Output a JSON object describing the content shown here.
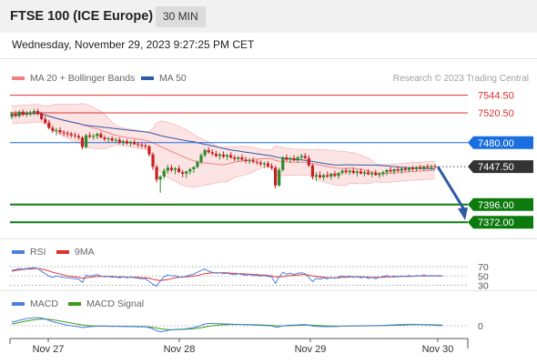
{
  "header": {
    "title": "FTSE 100 (ICE Europe)",
    "interval": "30 MIN",
    "datetime": "Wednesday, November 29, 2023 9:27:25 PM CET"
  },
  "legend": {
    "ma20": "MA 20 + Bollinger Bands",
    "ma50": "MA 50",
    "rsi": "RSI",
    "rsi_ma": "9MA",
    "macd": "MACD",
    "macd_signal": "MACD Signal"
  },
  "watermark": "Research © 2023 Trading Central",
  "colors": {
    "candle_up": "#2d8a2d",
    "candle_down": "#c82020",
    "ma20": "#f08080",
    "bollinger_fill": "#fde4e4",
    "ma50": "#2e5aa6",
    "resistance": "#e03030",
    "pivot": "#1a6fe0",
    "support": "#0d7a0d",
    "last_price": "#333333",
    "arrow": "#2e5aa6",
    "rsi": "#4a7fe0",
    "rsi_ma": "#e03030",
    "macd": "#4a7fe0",
    "macd_signal": "#3a9a1a"
  },
  "chart_data": [
    {
      "type": "candlestick",
      "panel": "price",
      "title": "",
      "x_tick_labels": [
        "Nov 27",
        "Nov 28",
        "Nov 29",
        "Nov 30"
      ],
      "ylim": [
        7355,
        7565
      ],
      "levels": [
        {
          "value": 7544.5,
          "label": "7544.50",
          "kind": "resistance"
        },
        {
          "value": 7520.5,
          "label": "7520.50",
          "kind": "resistance"
        },
        {
          "value": 7480.0,
          "label": "7480.00",
          "kind": "pivot"
        },
        {
          "value": 7447.5,
          "label": "7447.50",
          "kind": "last"
        },
        {
          "value": 7396.0,
          "label": "7396.00",
          "kind": "support"
        },
        {
          "value": 7372.0,
          "label": "7372.00",
          "kind": "support"
        }
      ],
      "forecast_arrow": {
        "from": 7447.5,
        "to": 7376
      },
      "candles": [
        [
          7515,
          7522,
          7512,
          7519
        ],
        [
          7519,
          7523,
          7514,
          7516
        ],
        [
          7516,
          7524,
          7514,
          7522
        ],
        [
          7522,
          7525,
          7516,
          7518
        ],
        [
          7518,
          7523,
          7515,
          7520
        ],
        [
          7520,
          7524,
          7516,
          7521
        ],
        [
          7521,
          7526,
          7517,
          7523
        ],
        [
          7523,
          7526,
          7517,
          7519
        ],
        [
          7519,
          7522,
          7510,
          7512
        ],
        [
          7512,
          7516,
          7505,
          7507
        ],
        [
          7507,
          7511,
          7498,
          7500
        ],
        [
          7500,
          7503,
          7493,
          7496
        ],
        [
          7496,
          7500,
          7490,
          7497
        ],
        [
          7497,
          7501,
          7491,
          7494
        ],
        [
          7494,
          7497,
          7489,
          7493
        ],
        [
          7493,
          7496,
          7488,
          7492
        ],
        [
          7492,
          7495,
          7487,
          7490
        ],
        [
          7490,
          7494,
          7486,
          7489
        ],
        [
          7489,
          7492,
          7484,
          7487
        ],
        [
          7487,
          7489,
          7471,
          7474
        ],
        [
          7474,
          7492,
          7472,
          7490
        ],
        [
          7490,
          7494,
          7486,
          7488
        ],
        [
          7488,
          7492,
          7484,
          7489
        ],
        [
          7489,
          7494,
          7485,
          7492
        ],
        [
          7492,
          7495,
          7486,
          7487
        ],
        [
          7487,
          7490,
          7482,
          7485
        ],
        [
          7485,
          7488,
          7480,
          7486
        ],
        [
          7486,
          7489,
          7481,
          7483
        ],
        [
          7483,
          7487,
          7479,
          7484
        ],
        [
          7484,
          7487,
          7478,
          7480
        ],
        [
          7480,
          7484,
          7476,
          7482
        ],
        [
          7482,
          7485,
          7477,
          7479
        ],
        [
          7479,
          7483,
          7475,
          7481
        ],
        [
          7481,
          7484,
          7477,
          7478
        ],
        [
          7478,
          7481,
          7474,
          7477
        ],
        [
          7477,
          7480,
          7473,
          7476
        ],
        [
          7476,
          7479,
          7472,
          7475
        ],
        [
          7475,
          7477,
          7461,
          7464
        ],
        [
          7464,
          7467,
          7443,
          7447
        ],
        [
          7447,
          7450,
          7426,
          7430
        ],
        [
          7430,
          7436,
          7412,
          7434
        ],
        [
          7434,
          7445,
          7431,
          7442
        ],
        [
          7442,
          7450,
          7438,
          7446
        ],
        [
          7446,
          7450,
          7440,
          7443
        ],
        [
          7443,
          7447,
          7437,
          7445
        ],
        [
          7445,
          7449,
          7439,
          7440
        ],
        [
          7440,
          7443,
          7433,
          7438
        ],
        [
          7438,
          7442,
          7432,
          7441
        ],
        [
          7441,
          7446,
          7437,
          7444
        ],
        [
          7444,
          7448,
          7439,
          7447
        ],
        [
          7447,
          7456,
          7445,
          7454
        ],
        [
          7454,
          7466,
          7451,
          7463
        ],
        [
          7463,
          7472,
          7460,
          7470
        ],
        [
          7470,
          7474,
          7465,
          7467
        ],
        [
          7467,
          7471,
          7462,
          7465
        ],
        [
          7465,
          7469,
          7460,
          7462
        ],
        [
          7462,
          7466,
          7457,
          7464
        ],
        [
          7464,
          7468,
          7459,
          7461
        ],
        [
          7461,
          7465,
          7456,
          7463
        ],
        [
          7463,
          7467,
          7458,
          7460
        ],
        [
          7460,
          7463,
          7455,
          7458
        ],
        [
          7458,
          7462,
          7454,
          7460
        ],
        [
          7460,
          7464,
          7455,
          7457
        ],
        [
          7457,
          7461,
          7452,
          7455
        ],
        [
          7455,
          7459,
          7451,
          7456
        ],
        [
          7456,
          7460,
          7452,
          7454
        ],
        [
          7454,
          7457,
          7450,
          7453
        ],
        [
          7453,
          7456,
          7448,
          7451
        ],
        [
          7451,
          7454,
          7446,
          7452
        ],
        [
          7452,
          7455,
          7446,
          7448
        ],
        [
          7448,
          7452,
          7443,
          7446
        ],
        [
          7446,
          7449,
          7418,
          7422
        ],
        [
          7422,
          7446,
          7420,
          7443
        ],
        [
          7443,
          7462,
          7441,
          7460
        ],
        [
          7460,
          7464,
          7455,
          7457
        ],
        [
          7457,
          7461,
          7452,
          7459
        ],
        [
          7459,
          7463,
          7455,
          7456
        ],
        [
          7456,
          7462,
          7453,
          7460
        ],
        [
          7460,
          7465,
          7457,
          7462
        ],
        [
          7462,
          7466,
          7458,
          7459
        ],
        [
          7459,
          7463,
          7447,
          7449
        ],
        [
          7449,
          7452,
          7430,
          7434
        ],
        [
          7434,
          7440,
          7428,
          7436
        ],
        [
          7436,
          7441,
          7431,
          7433
        ],
        [
          7433,
          7438,
          7429,
          7436
        ],
        [
          7436,
          7441,
          7432,
          7434
        ],
        [
          7434,
          7439,
          7430,
          7438
        ],
        [
          7438,
          7442,
          7433,
          7435
        ],
        [
          7435,
          7440,
          7431,
          7439
        ],
        [
          7439,
          7444,
          7436,
          7442
        ],
        [
          7442,
          7446,
          7437,
          7440
        ],
        [
          7440,
          7444,
          7436,
          7442
        ],
        [
          7442,
          7446,
          7437,
          7439
        ],
        [
          7439,
          7443,
          7434,
          7441
        ],
        [
          7441,
          7445,
          7437,
          7438
        ],
        [
          7438,
          7442,
          7434,
          7440
        ],
        [
          7440,
          7444,
          7436,
          7437
        ],
        [
          7437,
          7441,
          7433,
          7439
        ],
        [
          7439,
          7443,
          7435,
          7436
        ],
        [
          7436,
          7440,
          7432,
          7438
        ],
        [
          7438,
          7442,
          7434,
          7440
        ],
        [
          7440,
          7444,
          7436,
          7443
        ],
        [
          7443,
          7447,
          7439,
          7441
        ],
        [
          7441,
          7445,
          7437,
          7444
        ],
        [
          7444,
          7448,
          7440,
          7442
        ],
        [
          7442,
          7446,
          7438,
          7445
        ],
        [
          7445,
          7448,
          7441,
          7443
        ],
        [
          7443,
          7447,
          7440,
          7446
        ],
        [
          7446,
          7449,
          7442,
          7444
        ],
        [
          7444,
          7448,
          7441,
          7447
        ],
        [
          7447,
          7450,
          7443,
          7445
        ],
        [
          7445,
          7449,
          7442,
          7448
        ],
        [
          7448,
          7451,
          7444,
          7446
        ],
        [
          7446,
          7450,
          7443,
          7448
        ],
        [
          7448,
          7451,
          7445,
          7447
        ]
      ]
    },
    {
      "type": "line",
      "panel": "rsi",
      "y_tick_labels": [
        "70",
        "50",
        "30"
      ],
      "ylim": [
        25,
        78
      ],
      "series": [
        {
          "name": "RSI"
        },
        {
          "name": "9MA"
        }
      ],
      "rsi_values": [
        62,
        64,
        66,
        65,
        66,
        67,
        68,
        66,
        60,
        55,
        50,
        47,
        50,
        48,
        47,
        46,
        45,
        44,
        43,
        36,
        52,
        50,
        51,
        53,
        50,
        48,
        49,
        47,
        48,
        46,
        48,
        46,
        48,
        46,
        45,
        44,
        44,
        38,
        32,
        28,
        40,
        48,
        52,
        50,
        51,
        48,
        47,
        50,
        52,
        54,
        58,
        62,
        65,
        60,
        58,
        56,
        57,
        55,
        56,
        54,
        53,
        55,
        53,
        52,
        53,
        51,
        51,
        50,
        51,
        49,
        48,
        34,
        48,
        58,
        54,
        56,
        53,
        56,
        57,
        55,
        47,
        38,
        45,
        43,
        46,
        44,
        47,
        45,
        48,
        50,
        48,
        50,
        47,
        49,
        46,
        48,
        45,
        47,
        44,
        47,
        49,
        51,
        48,
        50,
        48,
        50,
        49,
        51,
        49,
        51,
        50,
        52,
        50,
        51,
        50,
        51,
        50
      ],
      "rsi_ma_values": [
        60,
        62,
        63,
        64,
        65,
        65,
        66,
        66,
        65,
        63,
        61,
        58,
        56,
        54,
        52,
        50,
        49,
        48,
        47,
        45,
        46,
        47,
        48,
        49,
        49,
        49,
        49,
        49,
        48,
        48,
        48,
        47,
        47,
        47,
        47,
        46,
        46,
        45,
        43,
        41,
        40,
        41,
        42,
        44,
        46,
        47,
        48,
        48,
        49,
        50,
        51,
        53,
        55,
        56,
        57,
        57,
        57,
        57,
        57,
        56,
        56,
        55,
        55,
        54,
        54,
        53,
        53,
        52,
        52,
        51,
        50,
        48,
        48,
        49,
        50,
        51,
        51,
        52,
        53,
        53,
        52,
        50,
        49,
        48,
        47,
        46,
        46,
        46,
        46,
        47,
        47,
        48,
        48,
        48,
        48,
        48,
        47,
        47,
        47,
        47,
        47,
        48,
        48,
        48,
        49,
        49,
        49,
        49,
        49,
        50,
        50,
        50,
        50,
        50,
        50,
        50,
        50
      ]
    },
    {
      "type": "line",
      "panel": "macd",
      "y_tick_labels": [
        "0"
      ],
      "ylim": [
        -14,
        14
      ],
      "series": [
        {
          "name": "MACD"
        },
        {
          "name": "MACD Signal"
        }
      ],
      "macd_values": [
        4,
        5,
        6,
        7,
        8,
        8.5,
        9,
        9,
        8.5,
        7.5,
        6,
        4.5,
        3.5,
        2.5,
        1.5,
        0.5,
        0,
        -0.5,
        -1,
        -2,
        -1.5,
        -1,
        -0.8,
        -0.5,
        -0.5,
        -0.6,
        -0.5,
        -0.7,
        -0.6,
        -0.8,
        -0.7,
        -0.9,
        -0.8,
        -1,
        -1.1,
        -1.2,
        -1.3,
        -2,
        -3.5,
        -5.5,
        -6.5,
        -6,
        -5,
        -4.5,
        -4,
        -3.8,
        -3.6,
        -3.2,
        -2.6,
        -2,
        -1,
        0.5,
        2,
        2.5,
        2.6,
        2.4,
        2.3,
        2.1,
        2,
        1.8,
        1.6,
        1.6,
        1.4,
        1.2,
        1.1,
        0.9,
        0.7,
        0.5,
        0.3,
        0.1,
        -0.2,
        -1.5,
        -1.3,
        0,
        0.4,
        0.7,
        0.8,
        1,
        1.3,
        1.4,
        0.9,
        -0.2,
        -0.6,
        -0.9,
        -0.9,
        -1,
        -0.9,
        -0.9,
        -0.7,
        -0.4,
        -0.3,
        -0.1,
        -0.1,
        0,
        0,
        0.1,
        0.1,
        0.2,
        0.2,
        0.3,
        0.4,
        0.6,
        0.8,
        1,
        1.2,
        1.4,
        1.5,
        1.6,
        1.6,
        1.5,
        1.3,
        1.1,
        0.9,
        0.7,
        0.5,
        0.3,
        0.2
      ],
      "signal_values": [
        2,
        2.8,
        3.6,
        4.5,
        5.3,
        6,
        6.6,
        7.1,
        7.4,
        7.4,
        7.1,
        6.6,
        6,
        5.3,
        4.5,
        3.7,
        3,
        2.3,
        1.6,
        0.9,
        0.4,
        0.1,
        -0.1,
        -0.2,
        -0.3,
        -0.3,
        -0.4,
        -0.4,
        -0.5,
        -0.5,
        -0.6,
        -0.6,
        -0.7,
        -0.7,
        -0.8,
        -0.9,
        -1,
        -1.2,
        -1.7,
        -2.4,
        -3.2,
        -3.8,
        -4.1,
        -4.2,
        -4.2,
        -4.1,
        -4,
        -3.8,
        -3.6,
        -3.3,
        -2.8,
        -2.1,
        -1.3,
        -0.6,
        0,
        0.5,
        0.9,
        1.1,
        1.3,
        1.4,
        1.4,
        1.4,
        1.4,
        1.4,
        1.3,
        1.2,
        1.1,
        1,
        0.8,
        0.6,
        0.4,
        0.1,
        -0.1,
        -0.1,
        0,
        0.1,
        0.3,
        0.4,
        0.6,
        0.8,
        0.8,
        0.6,
        0.4,
        0.2,
        0,
        -0.2,
        -0.3,
        -0.4,
        -0.4,
        -0.4,
        -0.4,
        -0.3,
        -0.3,
        -0.2,
        -0.2,
        -0.1,
        -0.1,
        0,
        0,
        0.1,
        0.2,
        0.3,
        0.4,
        0.5,
        0.6,
        0.8,
        0.9,
        1.1,
        1.2,
        1.3,
        1.3,
        1.3,
        1.2,
        1.1,
        1,
        0.9,
        0.8
      ]
    }
  ]
}
